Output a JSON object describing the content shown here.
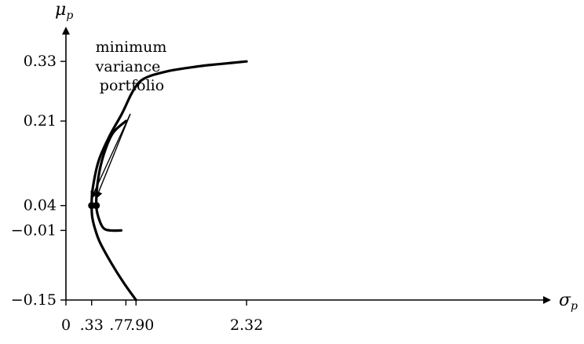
{
  "chart_data": {
    "type": "line",
    "title": "",
    "xlabel": "σ",
    "xlabel_sub": "p",
    "ylabel": "μ",
    "ylabel_sub": "p",
    "xlim": [
      0,
      2.5
    ],
    "ylim": [
      -0.15,
      0.42
    ],
    "grid": false,
    "legend": "none",
    "x_ticks": [
      {
        "value": 0,
        "label": "0"
      },
      {
        "value": 0.33,
        "label": ".33"
      },
      {
        "value": 0.77,
        "label": ".77"
      },
      {
        "value": 0.9,
        "label": ".90"
      },
      {
        "value": 2.32,
        "label": "2.32"
      }
    ],
    "y_ticks": [
      {
        "value": 0.33,
        "label": "0.33"
      },
      {
        "value": 0.21,
        "label": "0.21"
      },
      {
        "value": 0.04,
        "label": "0.04"
      },
      {
        "value": -0.01,
        "label": "−0.01"
      },
      {
        "value": -0.15,
        "label": "−0.15"
      }
    ],
    "series": [
      {
        "points": [
          [
            0.9,
            -0.15
          ],
          [
            0.74,
            -0.115
          ],
          [
            0.58,
            -0.075
          ],
          [
            0.44,
            -0.035
          ],
          [
            0.38,
            -0.01
          ],
          [
            0.34,
            0.015
          ],
          [
            0.33,
            0.04
          ],
          [
            0.345,
            0.075
          ],
          [
            0.42,
            0.13
          ],
          [
            0.56,
            0.18
          ],
          [
            0.72,
            0.225
          ],
          [
            0.86,
            0.27
          ],
          [
            1.0,
            0.295
          ],
          [
            1.3,
            0.31
          ],
          [
            1.7,
            0.32
          ],
          [
            2.0,
            0.325
          ],
          [
            2.32,
            0.33
          ]
        ]
      },
      {
        "points": [
          [
            0.71,
            -0.01
          ],
          [
            0.57,
            -0.01
          ],
          [
            0.48,
            -0.005
          ],
          [
            0.42,
            0.015
          ],
          [
            0.39,
            0.04
          ],
          [
            0.41,
            0.09
          ],
          [
            0.48,
            0.14
          ],
          [
            0.6,
            0.185
          ],
          [
            0.77,
            0.21
          ]
        ]
      }
    ],
    "points": [
      {
        "x": 0.33,
        "y": 0.04
      },
      {
        "x": 0.39,
        "y": 0.04
      }
    ],
    "annotation": {
      "lines": [
        "minimum",
        "variance",
        "portfolio"
      ]
    }
  }
}
